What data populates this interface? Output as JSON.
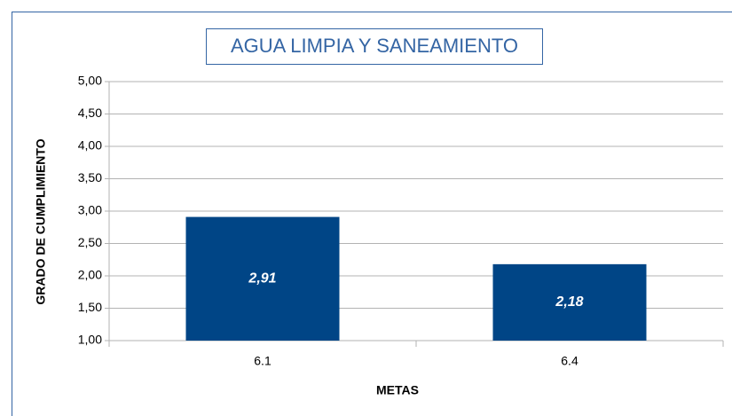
{
  "chart_data": {
    "type": "bar",
    "title": "AGUA LIMPIA Y SANEAMIENTO",
    "x_label": "METAS",
    "y_label": "GRADO DE CUMPLIMIENTO",
    "categories": [
      "6.1",
      "6.4"
    ],
    "values": [
      2.91,
      2.18
    ],
    "value_labels": [
      "2,91",
      "2,18"
    ],
    "color": "#004586",
    "ylim": [
      1,
      5
    ],
    "yticks": [
      {
        "value": 1,
        "label": "1,00"
      },
      {
        "value": 1.5,
        "label": "1,50"
      },
      {
        "value": 2,
        "label": "2,00"
      },
      {
        "value": 2.5,
        "label": "2,50"
      },
      {
        "value": 3,
        "label": "3,00"
      },
      {
        "value": 3.5,
        "label": "3,50"
      },
      {
        "value": 4,
        "label": "4,00"
      },
      {
        "value": 4.5,
        "label": "4,50"
      },
      {
        "value": 5,
        "label": "5,00"
      }
    ],
    "grid": true
  }
}
